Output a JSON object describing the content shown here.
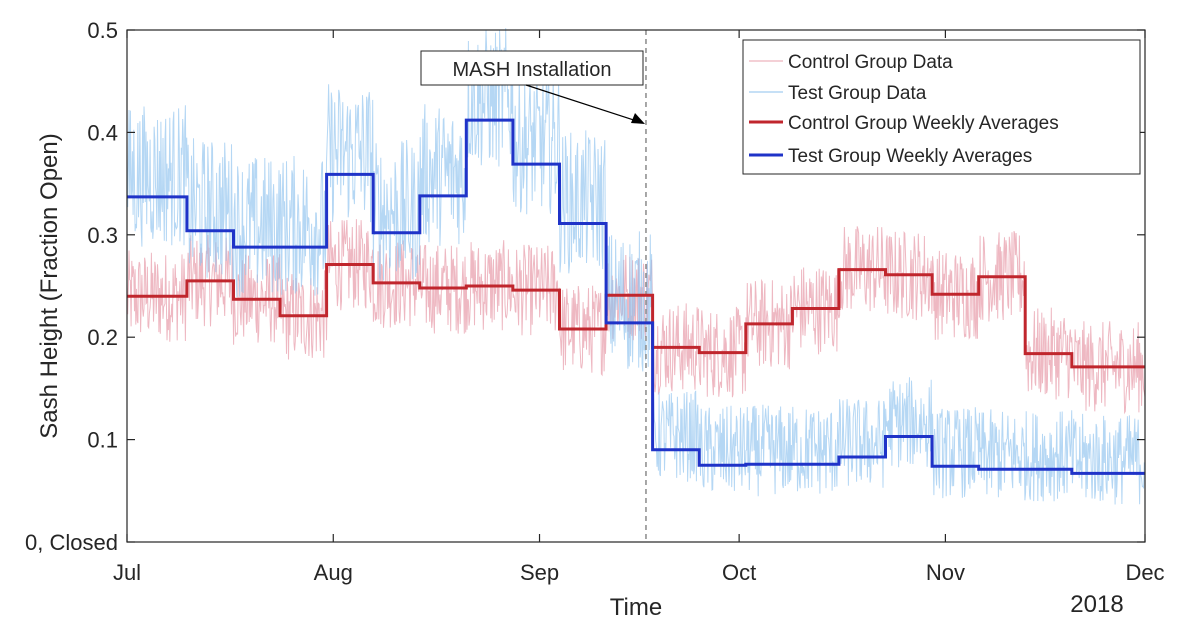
{
  "chart_data": {
    "type": "line",
    "xlabel": "Time",
    "ylabel": "Sash Height (Fraction Open)",
    "year_label": "2018",
    "x_range": [
      "2018-07-01",
      "2018-12-01"
    ],
    "ylim": [
      0,
      0.5
    ],
    "x_ticks": [
      {
        "label": "Jul",
        "date": "2018-07-01"
      },
      {
        "label": "Aug",
        "date": "2018-08-01"
      },
      {
        "label": "Sep",
        "date": "2018-09-01"
      },
      {
        "label": "Oct",
        "date": "2018-10-01"
      },
      {
        "label": "Nov",
        "date": "2018-11-01"
      },
      {
        "label": "Dec",
        "date": "2018-12-01"
      }
    ],
    "y_ticks": [
      {
        "label": "0, Closed",
        "value": 0
      },
      {
        "label": "0.1",
        "value": 0.1
      },
      {
        "label": "0.2",
        "value": 0.2
      },
      {
        "label": "0.3",
        "value": 0.3
      },
      {
        "label": "0.4",
        "value": 0.4
      },
      {
        "label": "0.5",
        "value": 0.5
      }
    ],
    "grid": false,
    "legend_position": "top-right",
    "annotation": {
      "text": "MASH Installation",
      "date": "2018-09-17"
    },
    "series": [
      {
        "name": "Control Group Data",
        "style": "thin",
        "color": "#e8a0ae",
        "role": "raw_control"
      },
      {
        "name": "Test Group Data",
        "style": "thin",
        "color": "#8ec1ee",
        "role": "raw_test"
      },
      {
        "name": "Control Group Weekly Averages",
        "style": "thick",
        "color": "#c0262d",
        "role": "avg_control",
        "steps": [
          {
            "start": "2018-07-01",
            "end": "2018-07-10",
            "value": 0.24
          },
          {
            "start": "2018-07-10",
            "end": "2018-07-17",
            "value": 0.255
          },
          {
            "start": "2018-07-17",
            "end": "2018-07-24",
            "value": 0.237
          },
          {
            "start": "2018-07-24",
            "end": "2018-07-31",
            "value": 0.221
          },
          {
            "start": "2018-07-31",
            "end": "2018-08-07",
            "value": 0.271
          },
          {
            "start": "2018-08-07",
            "end": "2018-08-14",
            "value": 0.253
          },
          {
            "start": "2018-08-14",
            "end": "2018-08-21",
            "value": 0.248
          },
          {
            "start": "2018-08-21",
            "end": "2018-08-28",
            "value": 0.25
          },
          {
            "start": "2018-08-28",
            "end": "2018-09-04",
            "value": 0.246
          },
          {
            "start": "2018-09-04",
            "end": "2018-09-11",
            "value": 0.208
          },
          {
            "start": "2018-09-11",
            "end": "2018-09-18",
            "value": 0.241
          },
          {
            "start": "2018-09-18",
            "end": "2018-09-25",
            "value": 0.19
          },
          {
            "start": "2018-09-25",
            "end": "2018-10-02",
            "value": 0.185
          },
          {
            "start": "2018-10-02",
            "end": "2018-10-09",
            "value": 0.213
          },
          {
            "start": "2018-10-09",
            "end": "2018-10-16",
            "value": 0.228
          },
          {
            "start": "2018-10-16",
            "end": "2018-10-23",
            "value": 0.266
          },
          {
            "start": "2018-10-23",
            "end": "2018-10-30",
            "value": 0.261
          },
          {
            "start": "2018-10-30",
            "end": "2018-11-06",
            "value": 0.242
          },
          {
            "start": "2018-11-06",
            "end": "2018-11-13",
            "value": 0.259
          },
          {
            "start": "2018-11-13",
            "end": "2018-11-20",
            "value": 0.184
          },
          {
            "start": "2018-11-20",
            "end": "2018-12-01",
            "value": 0.171
          }
        ]
      },
      {
        "name": "Test Group Weekly Averages",
        "style": "thick",
        "color": "#1f33c8",
        "role": "avg_test",
        "steps": [
          {
            "start": "2018-07-01",
            "end": "2018-07-10",
            "value": 0.337
          },
          {
            "start": "2018-07-10",
            "end": "2018-07-17",
            "value": 0.304
          },
          {
            "start": "2018-07-17",
            "end": "2018-07-31",
            "value": 0.288
          },
          {
            "start": "2018-07-31",
            "end": "2018-08-07",
            "value": 0.359
          },
          {
            "start": "2018-08-07",
            "end": "2018-08-14",
            "value": 0.302
          },
          {
            "start": "2018-08-14",
            "end": "2018-08-21",
            "value": 0.338
          },
          {
            "start": "2018-08-21",
            "end": "2018-08-28",
            "value": 0.412
          },
          {
            "start": "2018-08-28",
            "end": "2018-09-04",
            "value": 0.369
          },
          {
            "start": "2018-09-04",
            "end": "2018-09-11",
            "value": 0.311
          },
          {
            "start": "2018-09-11",
            "end": "2018-09-18",
            "value": 0.214
          },
          {
            "start": "2018-09-18",
            "end": "2018-09-25",
            "value": 0.09
          },
          {
            "start": "2018-09-25",
            "end": "2018-10-02",
            "value": 0.075
          },
          {
            "start": "2018-10-02",
            "end": "2018-10-16",
            "value": 0.076
          },
          {
            "start": "2018-10-16",
            "end": "2018-10-23",
            "value": 0.083
          },
          {
            "start": "2018-10-23",
            "end": "2018-10-30",
            "value": 0.103
          },
          {
            "start": "2018-10-30",
            "end": "2018-11-06",
            "value": 0.074
          },
          {
            "start": "2018-11-06",
            "end": "2018-11-20",
            "value": 0.071
          },
          {
            "start": "2018-11-20",
            "end": "2018-12-01",
            "value": 0.067
          }
        ]
      }
    ]
  }
}
